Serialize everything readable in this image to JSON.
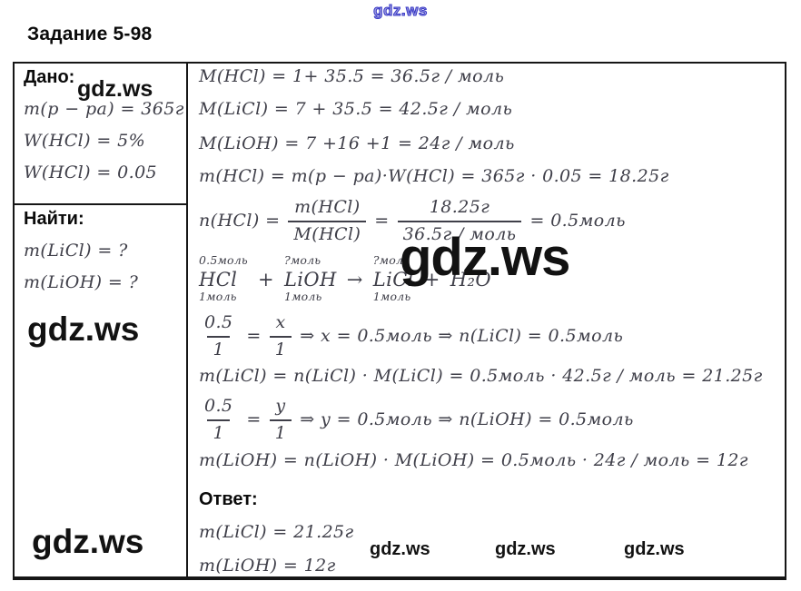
{
  "watermarks": {
    "top": "gdz.ws",
    "given": "gdz.ws",
    "mid_left": "gdz.ws",
    "bottom_left": "gdz.ws",
    "center": "gdz.ws",
    "row": [
      "gdz.ws",
      "gdz.ws",
      "gdz.ws"
    ]
  },
  "header": {
    "title": "Задание 5-98"
  },
  "given": {
    "label": "Дано:",
    "items": [
      "m(p − pa) = 365г",
      "W(HCl) = 5%",
      "W(HCl) = 0.05"
    ]
  },
  "find": {
    "label": "Найти:",
    "items": [
      "m(LiCl) = ?",
      "m(LiOH) = ?"
    ]
  },
  "solution": {
    "molar_masses": [
      "M(HCl) = 1+ 35.5 = 36.5г / моль",
      "M(LiCl) = 7 + 35.5 = 42.5г / моль",
      "M(LiOH) = 7 +16 +1 = 24г / моль"
    ],
    "mass_hcl": "m(HCl) = m(p − pa)·W(HCl) = 365г · 0.05 = 18.25г",
    "mole_hcl": {
      "lhs": "n(HCl) =",
      "frac1_num": "m(HCl)",
      "frac1_den": "M(HCl)",
      "eq": "=",
      "frac2_num": "18.25г",
      "frac2_den": "36.5г / моль",
      "result": "= 0.5моль"
    },
    "equation": {
      "terms": [
        {
          "top": "0.5моль",
          "main": "HCl",
          "bottom": "1моль"
        },
        {
          "top": "",
          "main": "+",
          "bottom": ""
        },
        {
          "top": "?моль",
          "main": "LiOH",
          "bottom": "1моль"
        },
        {
          "top": "",
          "main": "→",
          "bottom": ""
        },
        {
          "top": "?моль",
          "main": "LiCl",
          "bottom": "1моль"
        },
        {
          "top": "",
          "main": "+",
          "bottom": ""
        },
        {
          "top": "",
          "main": "H₂O",
          "bottom": ""
        }
      ]
    },
    "prop_licl": {
      "frac1_num": "0.5",
      "frac1_den": "1",
      "eq": "=",
      "frac2_num": "x",
      "frac2_den": "1",
      "rest": "⇒ x = 0.5моль ⇒ n(LiCl) = 0.5моль"
    },
    "mass_licl": "m(LiCl) = n(LiCl) · M(LiCl) = 0.5моль · 42.5г / моль = 21.25г",
    "prop_lioh": {
      "frac1_num": "0.5",
      "frac1_den": "1",
      "eq": "=",
      "frac2_num": "y",
      "frac2_den": "1",
      "rest": "⇒ y = 0.5моль ⇒ n(LiOH) = 0.5моль"
    },
    "mass_lioh": "m(LiOH) = n(LiOH) · M(LiOH) = 0.5моль · 24г / моль = 12г"
  },
  "answer": {
    "label": "Ответ:",
    "items": [
      "m(LiCl) = 21.25г",
      "m(LiOH) = 12г"
    ]
  }
}
